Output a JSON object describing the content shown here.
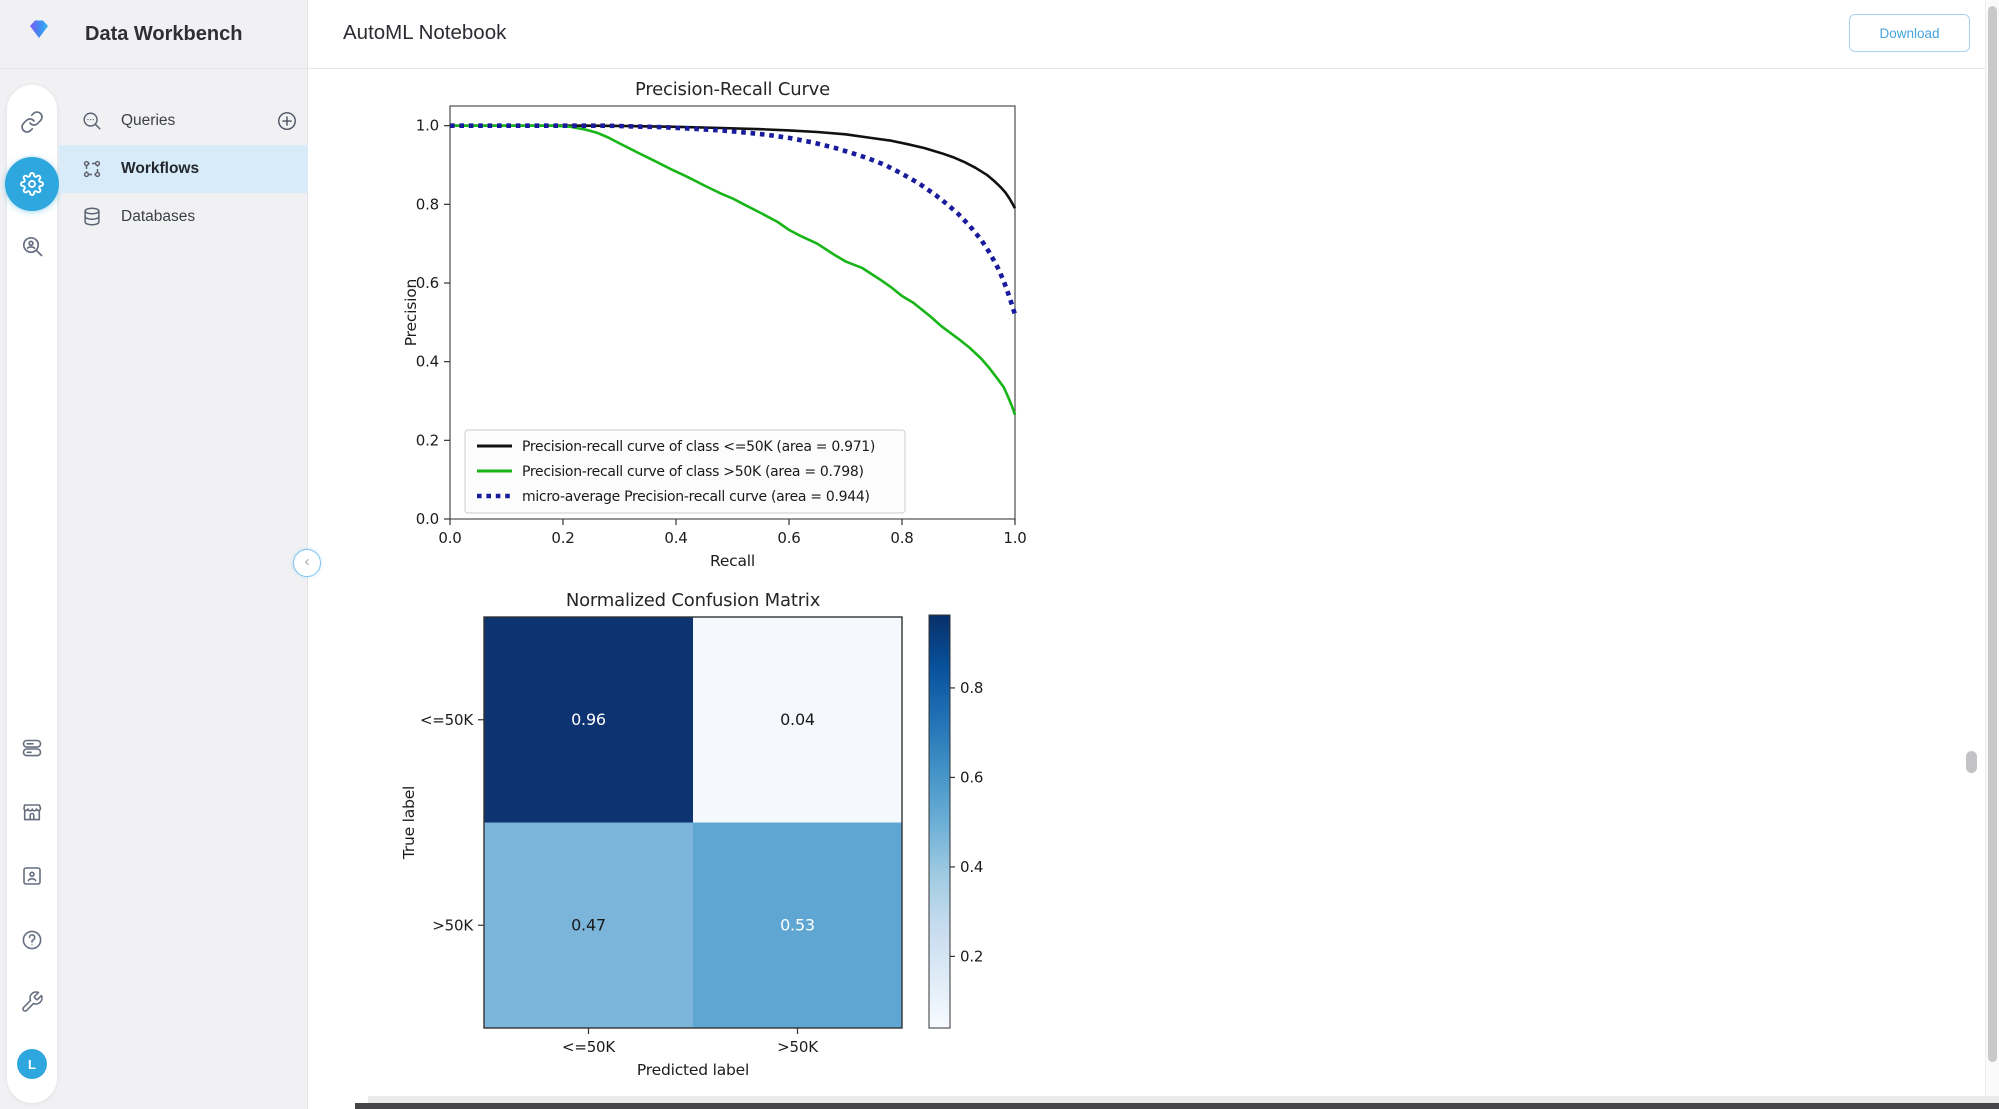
{
  "app": {
    "name": "Data Workbench"
  },
  "header": {
    "title": "AutoML Notebook",
    "download_button": "Download"
  },
  "sidebar": {
    "items": [
      {
        "label": "Queries",
        "icon": "search-queries-icon"
      },
      {
        "label": "Workflows",
        "icon": "workflow-icon",
        "active": true
      },
      {
        "label": "Databases",
        "icon": "database-icon"
      }
    ]
  },
  "rail": {
    "top_icons": [
      "link-icon",
      "sync-settings-icon",
      "user-search-icon"
    ],
    "bottom_icons": [
      "toggle-pills-icon",
      "storefront-icon",
      "contact-card-icon",
      "help-icon",
      "wrench-icon"
    ],
    "avatar_initial": "L"
  },
  "colors": {
    "accent_blue": "#2ea7df",
    "active_item_bg": "#d7ebf8",
    "download_blue": "#45a3de",
    "chart_green": "#17b517",
    "chart_navy": "#1a1a9c",
    "chart_black": "#111111"
  },
  "chart_data": [
    {
      "type": "line",
      "title": "Precision-Recall Curve",
      "xlabel": "Recall",
      "ylabel": "Precision",
      "xlim": [
        0.0,
        1.0
      ],
      "ylim": [
        0.0,
        1.05
      ],
      "xticks": [
        0.0,
        0.2,
        0.4,
        0.6,
        0.8,
        1.0
      ],
      "yticks": [
        0.0,
        0.2,
        0.4,
        0.6,
        0.8,
        1.0
      ],
      "grid": false,
      "legend_position": "lower left",
      "series": [
        {
          "name": "Precision-recall curve of class  <=50K (area = 0.971)",
          "color": "#111111",
          "style": "solid",
          "points": [
            [
              0,
              1
            ],
            [
              0.25,
              1
            ],
            [
              0.32,
              0.999
            ],
            [
              0.4,
              0.997
            ],
            [
              0.48,
              0.994
            ],
            [
              0.55,
              0.991
            ],
            [
              0.6,
              0.988
            ],
            [
              0.65,
              0.984
            ],
            [
              0.7,
              0.978
            ],
            [
              0.74,
              0.97
            ],
            [
              0.78,
              0.962
            ],
            [
              0.81,
              0.953
            ],
            [
              0.84,
              0.943
            ],
            [
              0.87,
              0.93
            ],
            [
              0.89,
              0.92
            ],
            [
              0.91,
              0.908
            ],
            [
              0.93,
              0.893
            ],
            [
              0.95,
              0.875
            ],
            [
              0.965,
              0.857
            ],
            [
              0.975,
              0.843
            ],
            [
              0.983,
              0.83
            ],
            [
              0.99,
              0.815
            ],
            [
              0.995,
              0.803
            ],
            [
              1,
              0.79
            ]
          ]
        },
        {
          "name": "Precision-recall curve of class  >50K (area = 0.798)",
          "color": "#17b517",
          "style": "solid",
          "points": [
            [
              0,
              1
            ],
            [
              0.18,
              1
            ],
            [
              0.21,
              0.998
            ],
            [
              0.24,
              0.99
            ],
            [
              0.26,
              0.982
            ],
            [
              0.28,
              0.97
            ],
            [
              0.3,
              0.955
            ],
            [
              0.33,
              0.933
            ],
            [
              0.36,
              0.912
            ],
            [
              0.39,
              0.89
            ],
            [
              0.42,
              0.87
            ],
            [
              0.45,
              0.848
            ],
            [
              0.48,
              0.827
            ],
            [
              0.5,
              0.815
            ],
            [
              0.52,
              0.8
            ],
            [
              0.55,
              0.778
            ],
            [
              0.58,
              0.755
            ],
            [
              0.6,
              0.735
            ],
            [
              0.62,
              0.72
            ],
            [
              0.65,
              0.7
            ],
            [
              0.68,
              0.672
            ],
            [
              0.7,
              0.655
            ],
            [
              0.73,
              0.638
            ],
            [
              0.76,
              0.61
            ],
            [
              0.78,
              0.59
            ],
            [
              0.8,
              0.567
            ],
            [
              0.82,
              0.55
            ],
            [
              0.85,
              0.515
            ],
            [
              0.87,
              0.49
            ],
            [
              0.9,
              0.458
            ],
            [
              0.92,
              0.435
            ],
            [
              0.94,
              0.408
            ],
            [
              0.955,
              0.383
            ],
            [
              0.97,
              0.355
            ],
            [
              0.98,
              0.335
            ],
            [
              0.988,
              0.31
            ],
            [
              0.995,
              0.285
            ],
            [
              1,
              0.265
            ]
          ]
        },
        {
          "name": "micro-average Precision-recall curve (area = 0.944)",
          "color": "#1a1a9c",
          "style": "dotted",
          "points": [
            [
              0,
              1
            ],
            [
              0.28,
              1
            ],
            [
              0.33,
              0.998
            ],
            [
              0.38,
              0.996
            ],
            [
              0.43,
              0.992
            ],
            [
              0.48,
              0.988
            ],
            [
              0.52,
              0.983
            ],
            [
              0.56,
              0.977
            ],
            [
              0.6,
              0.969
            ],
            [
              0.64,
              0.958
            ],
            [
              0.68,
              0.944
            ],
            [
              0.71,
              0.931
            ],
            [
              0.74,
              0.917
            ],
            [
              0.77,
              0.9
            ],
            [
              0.8,
              0.878
            ],
            [
              0.83,
              0.853
            ],
            [
              0.86,
              0.823
            ],
            [
              0.88,
              0.8
            ],
            [
              0.9,
              0.775
            ],
            [
              0.92,
              0.745
            ],
            [
              0.94,
              0.71
            ],
            [
              0.955,
              0.677
            ],
            [
              0.97,
              0.638
            ],
            [
              0.98,
              0.605
            ],
            [
              0.99,
              0.565
            ],
            [
              1,
              0.52
            ]
          ]
        }
      ]
    },
    {
      "type": "heatmap",
      "title": "Normalized Confusion Matrix",
      "xlabel": "Predicted label",
      "ylabel": "True label",
      "classes": [
        "<=50K",
        ">50K"
      ],
      "matrix": [
        [
          0.96,
          0.04
        ],
        [
          0.47,
          0.53
        ]
      ],
      "cell_colors": [
        [
          "#0d3470",
          "#f5f9fe"
        ],
        [
          "#7cb5da",
          "#5fa6d2"
        ]
      ],
      "cell_text_colors": [
        [
          "#ffffff",
          "#1a1a1a"
        ],
        [
          "#1a1a1a",
          "#ffffff"
        ]
      ],
      "colorbar_ticks": [
        0.8,
        0.6,
        0.4,
        0.2
      ],
      "colorbar_range": [
        0.04,
        0.963
      ],
      "colorbar_gradient": [
        "#082f68",
        "#08519c",
        "#2171b5",
        "#4292c6",
        "#6baed6",
        "#9ecae1",
        "#c6dbef",
        "#deebf7",
        "#f7fbff"
      ]
    }
  ]
}
